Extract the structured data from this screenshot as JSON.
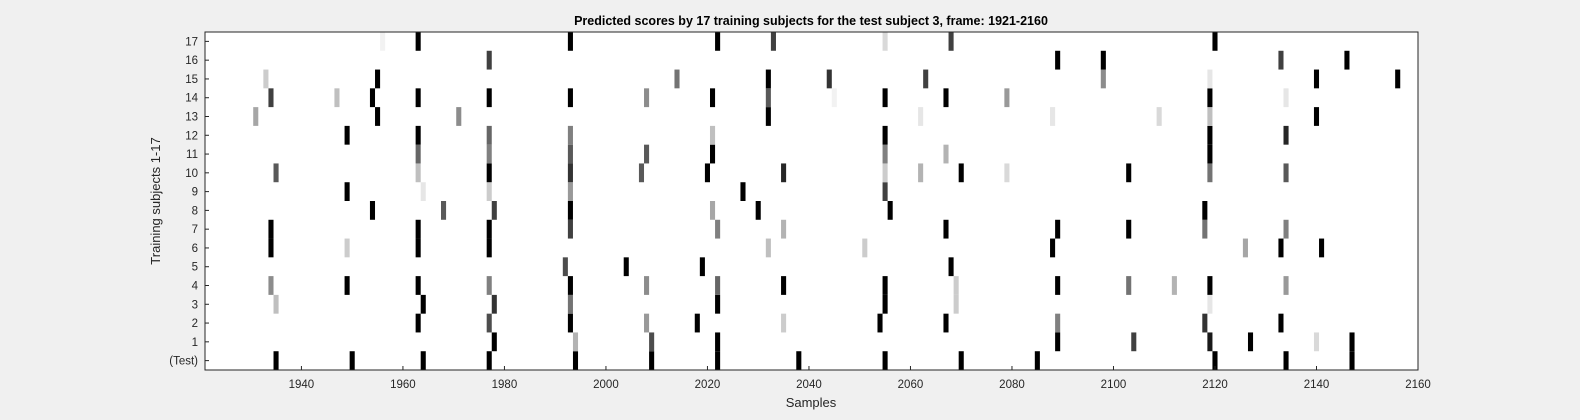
{
  "chart_data": {
    "type": "heatmap",
    "title": "Predicted scores by 17 training subjects for the test subject 3, frame: 1921-2160",
    "xlabel": "Samples",
    "ylabel": "Training subjects 1-17",
    "xlim": [
      1921,
      2160
    ],
    "x_ticks": [
      "1940",
      "1960",
      "1980",
      "2000",
      "2020",
      "2040",
      "2060",
      "2080",
      "2100",
      "2120",
      "2140",
      "2160"
    ],
    "x_tick_values": [
      1940,
      1960,
      1980,
      2000,
      2020,
      2040,
      2060,
      2080,
      2100,
      2120,
      2140,
      2160
    ],
    "rows": [
      "(Test)",
      "1",
      "2",
      "3",
      "4",
      "5",
      "6",
      "7",
      "8",
      "9",
      "10",
      "11",
      "12",
      "13",
      "14",
      "15",
      "16",
      "17"
    ],
    "colormap": "white = 0, black = 1 (grayscale)",
    "background_color": "#f0f0f0",
    "plot_background": "#ffffff",
    "cells": [
      {
        "row": "(Test)",
        "marks": [
          [
            1935,
            1.0
          ],
          [
            1950,
            1.0
          ],
          [
            1964,
            1.0
          ],
          [
            1977,
            1.0
          ],
          [
            1994,
            1.0
          ],
          [
            2009,
            1.0
          ],
          [
            2022,
            1.0
          ],
          [
            2038,
            1.0
          ],
          [
            2055,
            1.0
          ],
          [
            2070,
            1.0
          ],
          [
            2085,
            1.0
          ],
          [
            2120,
            1.0
          ],
          [
            2134,
            1.0
          ],
          [
            2147,
            1.0
          ]
        ]
      },
      {
        "row": "1",
        "marks": [
          [
            1978,
            1.0
          ],
          [
            1994,
            0.3
          ],
          [
            2009,
            0.7
          ],
          [
            2022,
            1.0
          ],
          [
            2089,
            1.0
          ],
          [
            2104,
            0.75
          ],
          [
            2119,
            0.9
          ],
          [
            2127,
            1.0
          ],
          [
            2140,
            0.15
          ],
          [
            2147,
            1.0
          ]
        ]
      },
      {
        "row": "2",
        "marks": [
          [
            1963,
            1.0
          ],
          [
            1977,
            0.7
          ],
          [
            1993,
            1.0
          ],
          [
            2008,
            0.4
          ],
          [
            2018,
            1.0
          ],
          [
            2035,
            0.2
          ],
          [
            2054,
            1.0
          ],
          [
            2067,
            1.0
          ],
          [
            2089,
            0.5
          ],
          [
            2118,
            0.8
          ],
          [
            2133,
            1.0
          ]
        ]
      },
      {
        "row": "3",
        "marks": [
          [
            1935,
            0.25
          ],
          [
            1964,
            1.0
          ],
          [
            1978,
            0.8
          ],
          [
            1993,
            0.55
          ],
          [
            2022,
            1.0
          ],
          [
            2055,
            1.0
          ],
          [
            2069,
            0.2
          ],
          [
            2119,
            0.1
          ]
        ]
      },
      {
        "row": "4",
        "marks": [
          [
            1934,
            0.45
          ],
          [
            1949,
            1.0
          ],
          [
            1963,
            1.0
          ],
          [
            1977,
            0.5
          ],
          [
            1993,
            1.0
          ],
          [
            2008,
            0.45
          ],
          [
            2022,
            0.6
          ],
          [
            2035,
            1.0
          ],
          [
            2055,
            1.0
          ],
          [
            2069,
            0.2
          ],
          [
            2089,
            1.0
          ],
          [
            2103,
            0.55
          ],
          [
            2112,
            0.3
          ],
          [
            2119,
            1.0
          ],
          [
            2134,
            0.4
          ]
        ]
      },
      {
        "row": "5",
        "marks": [
          [
            1992,
            0.7
          ],
          [
            2004,
            1.0
          ],
          [
            2019,
            1.0
          ],
          [
            2068,
            1.0
          ]
        ]
      },
      {
        "row": "6",
        "marks": [
          [
            1934,
            1.0
          ],
          [
            1949,
            0.2
          ],
          [
            1963,
            1.0
          ],
          [
            1977,
            1.0
          ],
          [
            2032,
            0.25
          ],
          [
            2051,
            0.2
          ],
          [
            2088,
            1.0
          ],
          [
            2126,
            0.35
          ],
          [
            2133,
            1.0
          ],
          [
            2141,
            1.0
          ]
        ]
      },
      {
        "row": "7",
        "marks": [
          [
            1934,
            1.0
          ],
          [
            1963,
            1.0
          ],
          [
            1977,
            1.0
          ],
          [
            1993,
            0.75
          ],
          [
            2022,
            0.5
          ],
          [
            2035,
            0.3
          ],
          [
            2067,
            1.0
          ],
          [
            2089,
            1.0
          ],
          [
            2103,
            1.0
          ],
          [
            2118,
            0.55
          ],
          [
            2134,
            0.5
          ]
        ]
      },
      {
        "row": "8",
        "marks": [
          [
            1954,
            1.0
          ],
          [
            1968,
            0.65
          ],
          [
            1978,
            0.75
          ],
          [
            1993,
            1.0
          ],
          [
            2021,
            0.35
          ],
          [
            2030,
            1.0
          ],
          [
            2056,
            1.0
          ],
          [
            2118,
            1.0
          ]
        ]
      },
      {
        "row": "9",
        "marks": [
          [
            1949,
            1.0
          ],
          [
            1964,
            0.1
          ],
          [
            1977,
            0.2
          ],
          [
            1993,
            0.4
          ],
          [
            2027,
            1.0
          ],
          [
            2055,
            0.75
          ]
        ]
      },
      {
        "row": "10",
        "marks": [
          [
            1935,
            0.65
          ],
          [
            1963,
            0.25
          ],
          [
            1977,
            1.0
          ],
          [
            1993,
            0.8
          ],
          [
            2007,
            0.65
          ],
          [
            2020,
            1.0
          ],
          [
            2035,
            0.85
          ],
          [
            2055,
            0.2
          ],
          [
            2062,
            0.3
          ],
          [
            2070,
            1.0
          ],
          [
            2079,
            0.15
          ],
          [
            2103,
            1.0
          ],
          [
            2119,
            0.55
          ],
          [
            2134,
            0.65
          ]
        ]
      },
      {
        "row": "11",
        "marks": [
          [
            1963,
            0.6
          ],
          [
            1977,
            0.5
          ],
          [
            1993,
            0.65
          ],
          [
            2008,
            0.65
          ],
          [
            2021,
            1.0
          ],
          [
            2055,
            0.5
          ],
          [
            2067,
            0.3
          ],
          [
            2119,
            1.0
          ]
        ]
      },
      {
        "row": "12",
        "marks": [
          [
            1949,
            1.0
          ],
          [
            1963,
            1.0
          ],
          [
            1977,
            0.6
          ],
          [
            1993,
            0.5
          ],
          [
            2021,
            0.25
          ],
          [
            2055,
            1.0
          ],
          [
            2119,
            1.0
          ],
          [
            2134,
            0.85
          ]
        ]
      },
      {
        "row": "13",
        "marks": [
          [
            1931,
            0.35
          ],
          [
            1955,
            1.0
          ],
          [
            1971,
            0.45
          ],
          [
            2032,
            1.0
          ],
          [
            2062,
            0.1
          ],
          [
            2088,
            0.1
          ],
          [
            2109,
            0.15
          ],
          [
            2119,
            0.25
          ],
          [
            2140,
            1.0
          ]
        ]
      },
      {
        "row": "14",
        "marks": [
          [
            1934,
            0.75
          ],
          [
            1947,
            0.25
          ],
          [
            1954,
            1.0
          ],
          [
            1963,
            1.0
          ],
          [
            1977,
            1.0
          ],
          [
            1993,
            1.0
          ],
          [
            2008,
            0.45
          ],
          [
            2021,
            1.0
          ],
          [
            2032,
            0.65
          ],
          [
            2045,
            0.05
          ],
          [
            2055,
            1.0
          ],
          [
            2067,
            1.0
          ],
          [
            2079,
            0.4
          ],
          [
            2119,
            1.0
          ],
          [
            2134,
            0.1
          ]
        ]
      },
      {
        "row": "15",
        "marks": [
          [
            1933,
            0.2
          ],
          [
            1955,
            1.0
          ],
          [
            2014,
            0.55
          ],
          [
            2032,
            1.0
          ],
          [
            2044,
            0.8
          ],
          [
            2063,
            0.75
          ],
          [
            2098,
            0.45
          ],
          [
            2119,
            0.1
          ],
          [
            2140,
            1.0
          ],
          [
            2156,
            1.0
          ]
        ]
      },
      {
        "row": "16",
        "marks": [
          [
            1977,
            0.75
          ],
          [
            2089,
            1.0
          ],
          [
            2098,
            1.0
          ],
          [
            2133,
            0.75
          ],
          [
            2146,
            1.0
          ]
        ]
      },
      {
        "row": "17",
        "marks": [
          [
            1956,
            0.05
          ],
          [
            1963,
            1.0
          ],
          [
            1993,
            1.0
          ],
          [
            2022,
            1.0
          ],
          [
            2033,
            0.75
          ],
          [
            2055,
            0.15
          ],
          [
            2068,
            0.75
          ],
          [
            2120,
            1.0
          ]
        ]
      }
    ]
  }
}
